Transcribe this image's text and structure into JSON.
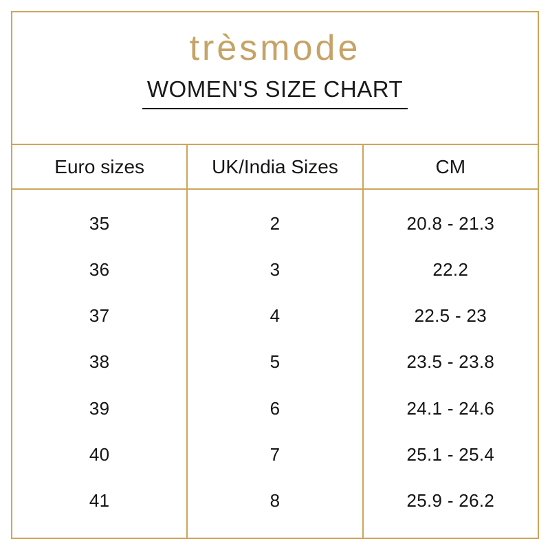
{
  "brand": {
    "logo_text": "trèsmode"
  },
  "header": {
    "title": "WOMEN'S SIZE CHART"
  },
  "colors": {
    "accent_gold_lines": "#CDA55C",
    "logo_gold": "#C6A366",
    "text_black": "#1A1A1A",
    "background": "#FFFFFF"
  },
  "table": {
    "headers": [
      "Euro sizes",
      "UK/India Sizes",
      "CM"
    ],
    "rows": [
      {
        "euro": "35",
        "uk_india": "2",
        "cm": "20.8 - 21.3"
      },
      {
        "euro": "36",
        "uk_india": "3",
        "cm": "22.2"
      },
      {
        "euro": "37",
        "uk_india": "4",
        "cm": "22.5 - 23"
      },
      {
        "euro": "38",
        "uk_india": "5",
        "cm": "23.5 - 23.8"
      },
      {
        "euro": "39",
        "uk_india": "6",
        "cm": "24.1 - 24.6"
      },
      {
        "euro": "40",
        "uk_india": "7",
        "cm": "25.1 - 25.4"
      },
      {
        "euro": "41",
        "uk_india": "8",
        "cm": "25.9 - 26.2"
      }
    ]
  }
}
